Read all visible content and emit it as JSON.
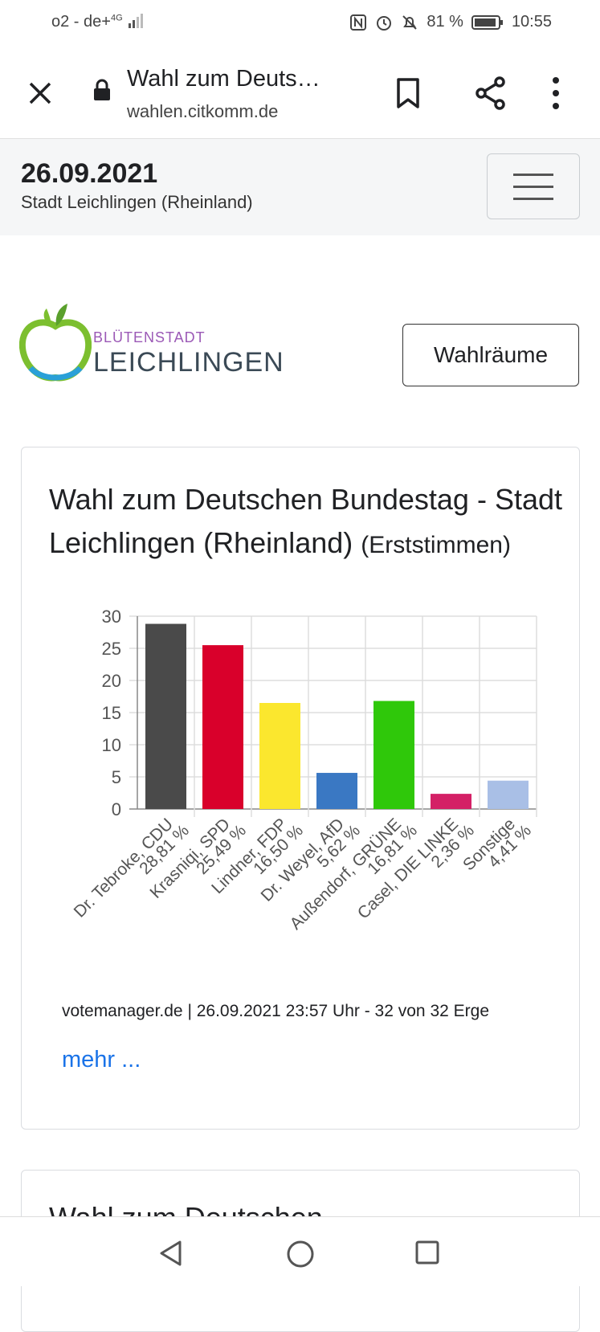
{
  "status": {
    "carrier": "o2 - de+",
    "network": "4G",
    "battery": "81 %",
    "time": "10:55"
  },
  "browser": {
    "page_title": "Wahl zum Deuts…",
    "domain": "wahlen.citkomm.de"
  },
  "site_header": {
    "date": "26.09.2021",
    "place": "Stadt Leichlingen (Rheinland)"
  },
  "logo": {
    "line1": "BLÜTENSTADT",
    "line2": "LEICHLINGEN"
  },
  "wahlraeume_button": "Wahlräume",
  "card": {
    "title": "Wahl zum Deutschen Bundestag - Stadt Leichlingen (Rheinland)",
    "subtitle": "(Erststimmen)",
    "source": "votemanager.de | 26.09.2021 23:57 Uhr - 32 von 32 Erge",
    "more_link": "mehr ..."
  },
  "chart_data": {
    "type": "bar",
    "categories": [
      "Dr. Tebroke, CDU",
      "Krasniqi, SPD",
      "Lindner, FDP",
      "Dr. Weyel, AfD",
      "Außendorf, GRÜNE",
      "Casel, DIE LINKE",
      "Sonstige"
    ],
    "value_labels": [
      "28,81 %",
      "25,49 %",
      "16,50 %",
      "5,62 %",
      "16,81 %",
      "2,36 %",
      "4,41 %"
    ],
    "values": [
      28.81,
      25.49,
      16.5,
      5.62,
      16.81,
      2.36,
      4.41
    ],
    "colors": [
      "#4a4a4a",
      "#d9002b",
      "#fbe72e",
      "#3a78c3",
      "#2fc80a",
      "#d42066",
      "#a9bfe6"
    ],
    "ylim": [
      0,
      30
    ],
    "yticks": [
      0,
      5,
      10,
      15,
      20,
      25,
      30
    ],
    "grid": true
  },
  "card2": {
    "title": "Wahl zum Deutschen"
  }
}
